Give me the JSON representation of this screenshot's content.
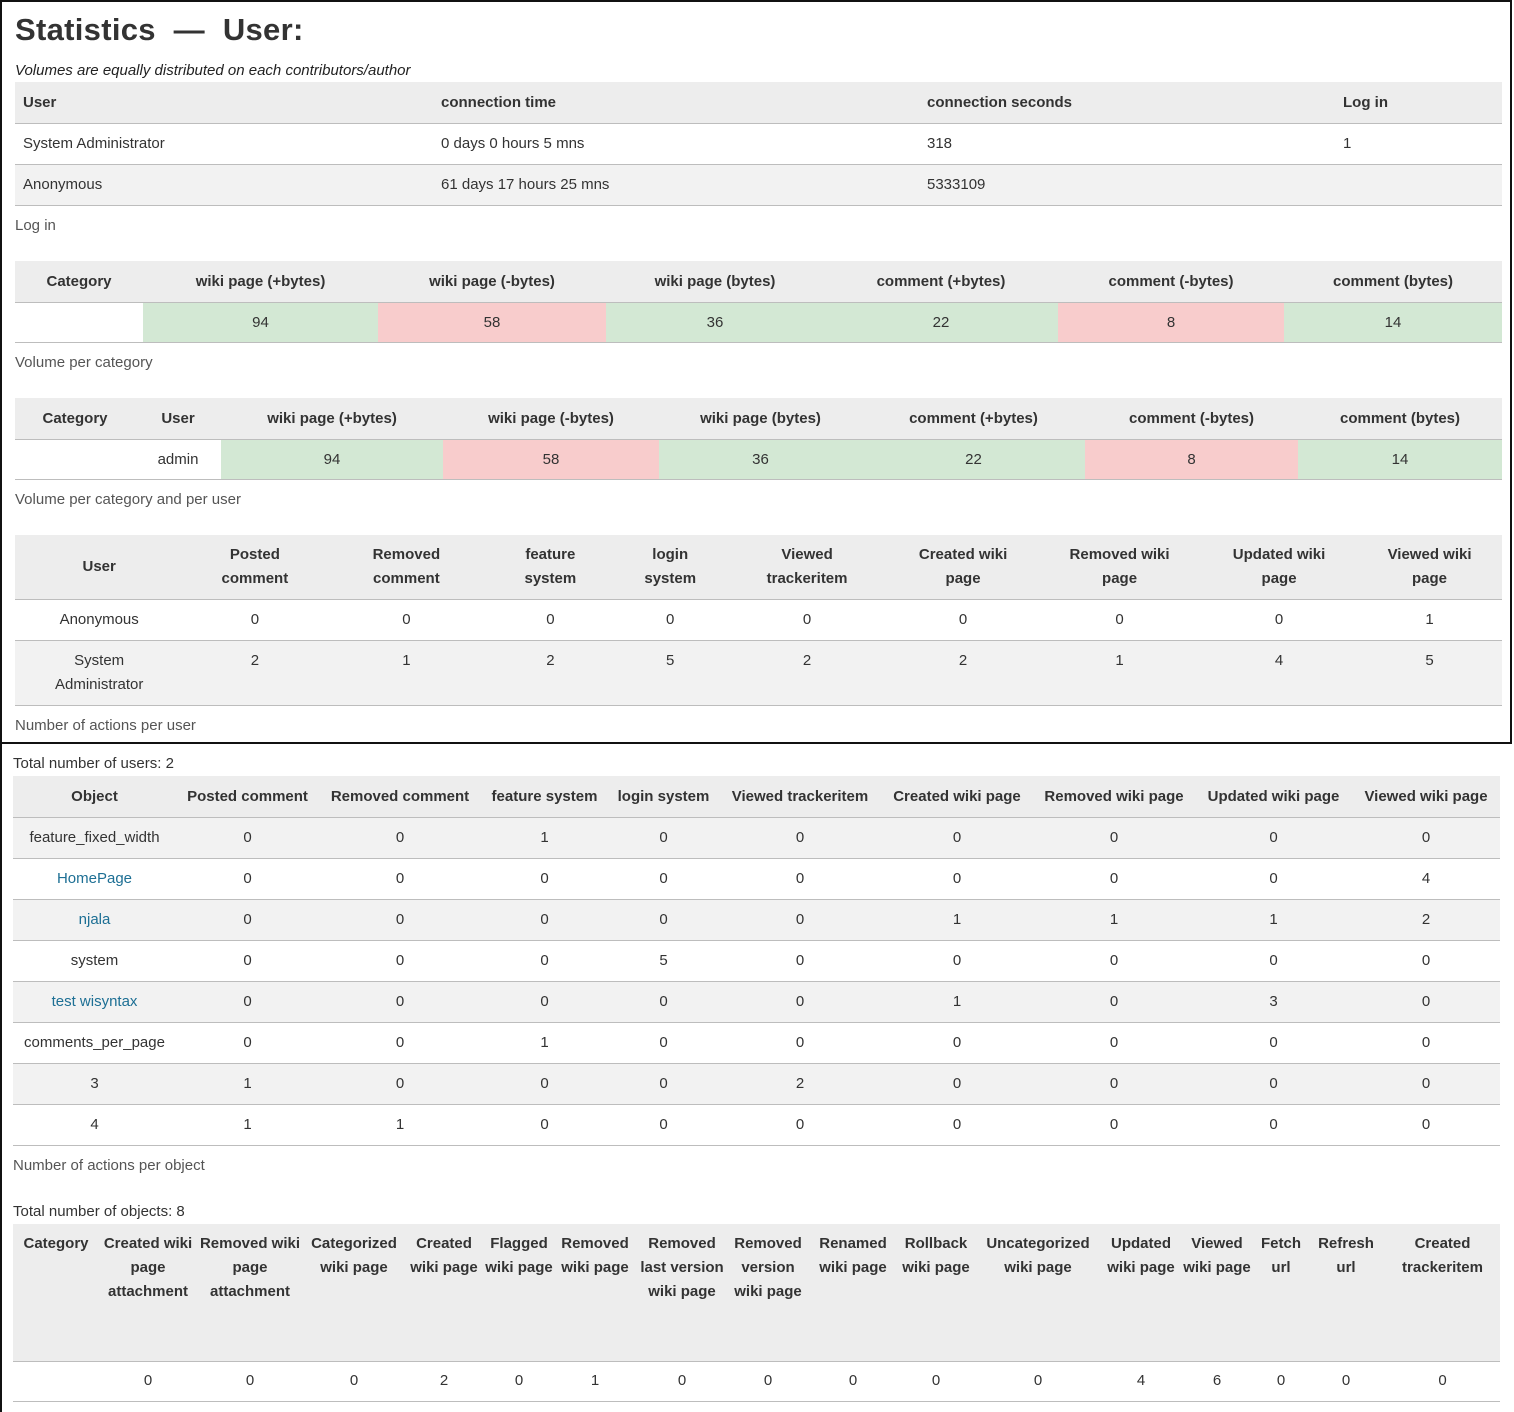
{
  "page": {
    "title": "Statistics",
    "dash": "—",
    "title_suffix": "User:",
    "subtitle": "Volumes are equally distributed on each contributors/author"
  },
  "login_table": {
    "headers": [
      "User",
      "connection time",
      "connection seconds",
      "Log in"
    ],
    "rows": [
      [
        "System Administrator",
        "0 days 0 hours 5 mns",
        "318",
        "1"
      ],
      [
        "Anonymous",
        "61 days 17 hours 25 mns",
        "5333109",
        ""
      ]
    ],
    "caption": "Log in"
  },
  "volume_category": {
    "headers": [
      "Category",
      "wiki page (+bytes)",
      "wiki page (-bytes)",
      "wiki page (bytes)",
      "comment (+bytes)",
      "comment (-bytes)",
      "comment (bytes)"
    ],
    "row": [
      "",
      "94",
      "58",
      "36",
      "22",
      "8",
      "14"
    ],
    "caption": "Volume per category"
  },
  "volume_category_user": {
    "headers": [
      "Category",
      "User",
      "wiki page (+bytes)",
      "wiki page (-bytes)",
      "wiki page (bytes)",
      "comment (+bytes)",
      "comment (-bytes)",
      "comment (bytes)"
    ],
    "row": [
      "",
      "admin",
      "94",
      "58",
      "36",
      "22",
      "8",
      "14"
    ],
    "caption": "Volume per category and per user"
  },
  "actions_user": {
    "headers": [
      "User",
      "Posted comment",
      "Removed comment",
      "feature system",
      "login system",
      "Viewed trackeritem",
      "Created wiki page",
      "Removed wiki page",
      "Updated wiki page",
      "Viewed wiki page"
    ],
    "rows": [
      [
        "Anonymous",
        "0",
        "0",
        "0",
        "0",
        "0",
        "0",
        "0",
        "0",
        "1"
      ],
      [
        "System Administrator",
        "2",
        "1",
        "2",
        "5",
        "2",
        "2",
        "1",
        "4",
        "5"
      ]
    ],
    "caption": "Number of actions per user",
    "total": "Total number of users: 2"
  },
  "actions_object": {
    "headers": [
      "Object",
      "Posted comment",
      "Removed comment",
      "feature system",
      "login system",
      "Viewed trackeritem",
      "Created wiki page",
      "Removed wiki page",
      "Updated wiki page",
      "Viewed wiki page"
    ],
    "rows": [
      [
        "feature_fixed_width",
        "0",
        "0",
        "1",
        "0",
        "0",
        "0",
        "0",
        "0",
        "0"
      ],
      [
        "HomePage",
        "0",
        "0",
        "0",
        "0",
        "0",
        "0",
        "0",
        "0",
        "4"
      ],
      [
        "njala",
        "0",
        "0",
        "0",
        "0",
        "0",
        "1",
        "1",
        "1",
        "2"
      ],
      [
        "system",
        "0",
        "0",
        "0",
        "5",
        "0",
        "0",
        "0",
        "0",
        "0"
      ],
      [
        "test wisyntax",
        "0",
        "0",
        "0",
        "0",
        "0",
        "1",
        "0",
        "3",
        "0"
      ],
      [
        "comments_per_page",
        "0",
        "0",
        "1",
        "0",
        "0",
        "0",
        "0",
        "0",
        "0"
      ],
      [
        "3",
        "1",
        "0",
        "0",
        "0",
        "2",
        "0",
        "0",
        "0",
        "0"
      ],
      [
        "4",
        "1",
        "1",
        "0",
        "0",
        "0",
        "0",
        "0",
        "0",
        "0"
      ]
    ],
    "caption": "Number of actions per object",
    "total": "Total number of objects: 8"
  },
  "category_table": {
    "headers": [
      "Category",
      "Created wiki page attachment",
      "Removed wiki page attachment",
      "Categorized wiki page",
      "Created wiki page",
      "Flagged wiki page",
      "Removed wiki page",
      "Removed last version wiki page",
      "Removed version wiki page",
      "Renamed wiki page",
      "Rollback wiki page",
      "Uncategorized wiki page",
      "Updated wiki page",
      "Viewed wiki page",
      "Fetch url",
      "Refresh url",
      "Created trackeritem"
    ],
    "row": [
      "",
      "0",
      "0",
      "0",
      "2",
      "0",
      "1",
      "0",
      "0",
      "0",
      "0",
      "0",
      "4",
      "6",
      "0",
      "0",
      "0"
    ]
  },
  "colors": {
    "positive": "#d3e8d4",
    "negative": "#f8cccc",
    "link": "#1d6f94",
    "header_bg": "#ededed"
  }
}
